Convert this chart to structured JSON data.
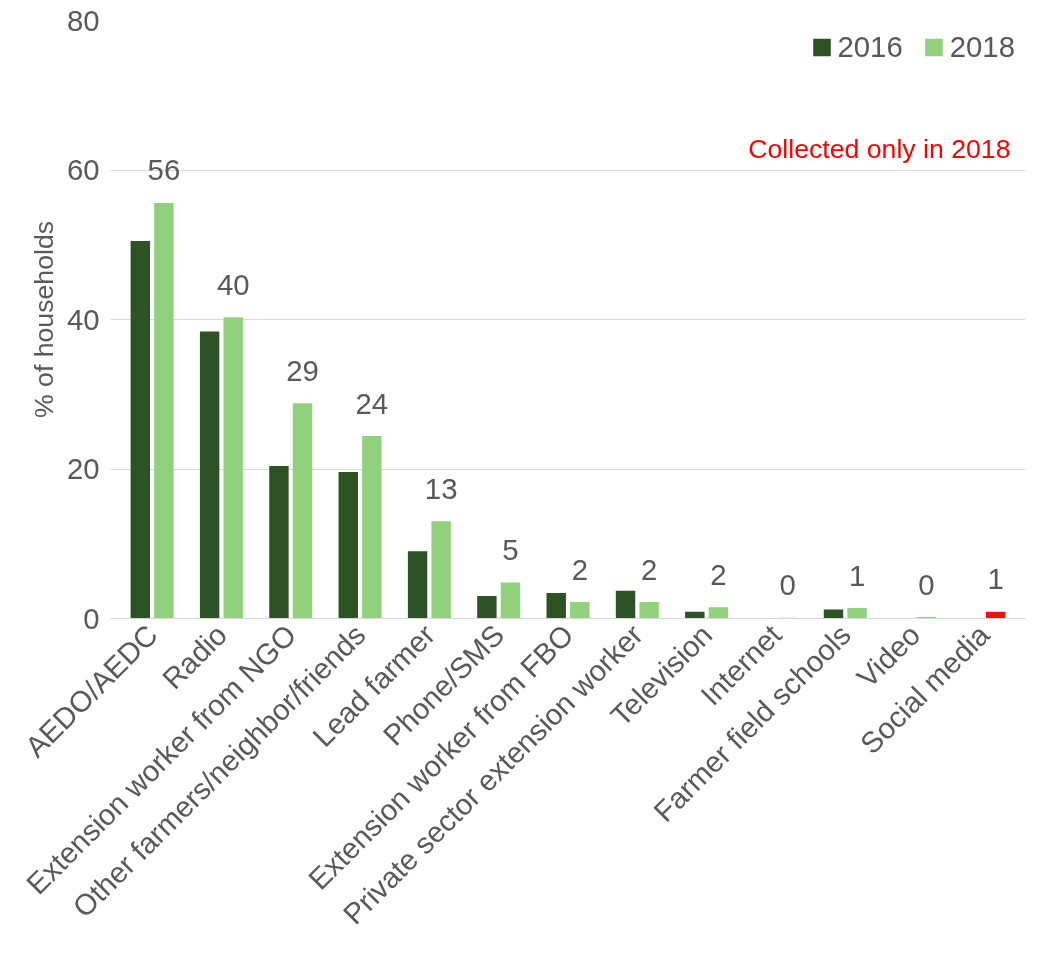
{
  "chart_data": {
    "type": "bar",
    "categories": [
      "AEDO/AEDC",
      "Radio",
      "Extension worker from NGO",
      "Other farmers/neighbor/friends",
      "Lead farmer",
      "Phone/SMS",
      "Extension worker from FBO",
      "Private sector extension worker",
      "Television",
      "Internet",
      "Farmer field schools",
      "Video",
      "Social media"
    ],
    "ylabel": "% of households",
    "ylim": [
      0,
      80
    ],
    "yticks": [
      0,
      20,
      40,
      60,
      80
    ],
    "grid": "y",
    "legend": "top right",
    "annotations": [
      "Collected only in 2018"
    ],
    "series": [
      {
        "name": "2016",
        "color": "#2d5223",
        "values": [
          50.5,
          38.4,
          20.4,
          19.6,
          9.0,
          3.0,
          3.4,
          3.7,
          0.9,
          null,
          1.2,
          null,
          null
        ]
      },
      {
        "name": "2018",
        "color": "#92d17c",
        "colors": [
          null,
          null,
          null,
          null,
          null,
          null,
          null,
          null,
          null,
          null,
          null,
          null,
          "#ee1111"
        ],
        "values": [
          55.6,
          40.3,
          28.8,
          24.4,
          13.0,
          4.8,
          2.2,
          2.2,
          1.5,
          0.1,
          1.4,
          0.2,
          0.9
        ],
        "value_labels": [
          "56",
          "40",
          "29",
          "24",
          "13",
          "5",
          "2",
          "2",
          "2",
          "0",
          "1",
          "0",
          "1"
        ]
      }
    ]
  }
}
